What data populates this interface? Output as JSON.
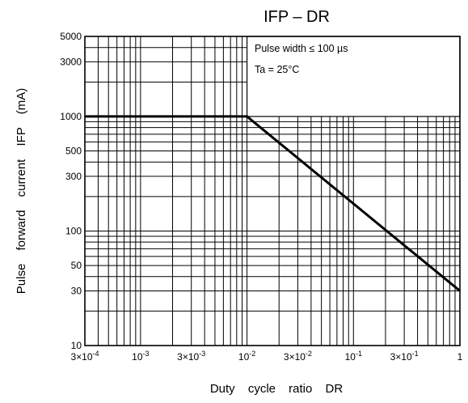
{
  "chart_data": {
    "type": "line",
    "title": "IFP – DR",
    "xlabel": "Duty cycle ratio DR",
    "ylabel": "Pulse forward current IFP (mA)",
    "x_scale": "log",
    "y_scale": "log",
    "xlim": [
      0.0003,
      1
    ],
    "ylim": [
      10,
      5000
    ],
    "grid": true,
    "x_ticks": [
      {
        "value": 0.0003,
        "label": "3×10-4"
      },
      {
        "value": 0.001,
        "label": "10-3"
      },
      {
        "value": 0.003,
        "label": "3×10-3"
      },
      {
        "value": 0.01,
        "label": "10-2"
      },
      {
        "value": 0.03,
        "label": "3×10-2"
      },
      {
        "value": 0.1,
        "label": "10-1"
      },
      {
        "value": 0.3,
        "label": "3×10-1"
      },
      {
        "value": 1,
        "label": "1"
      }
    ],
    "y_ticks": [
      {
        "value": 10,
        "label": "10"
      },
      {
        "value": 30,
        "label": "30"
      },
      {
        "value": 50,
        "label": "50"
      },
      {
        "value": 100,
        "label": "100"
      },
      {
        "value": 300,
        "label": "300"
      },
      {
        "value": 500,
        "label": "500"
      },
      {
        "value": 1000,
        "label": "1000"
      },
      {
        "value": 3000,
        "label": "3000"
      },
      {
        "value": 5000,
        "label": "5000"
      }
    ],
    "series": [
      {
        "x": [
          0.0003,
          0.01,
          1
        ],
        "y": [
          1000,
          1000,
          30
        ]
      }
    ],
    "annotations": [
      "Pulse width ≤ 100 µs",
      "Ta = 25°C"
    ]
  }
}
